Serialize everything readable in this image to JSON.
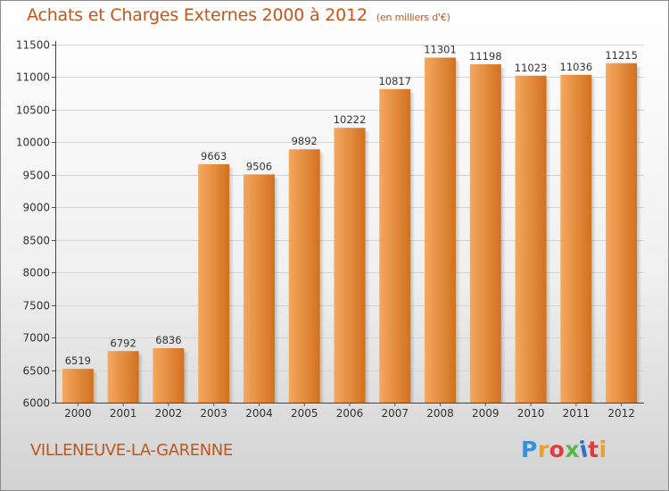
{
  "title": "Achats et Charges Externes 2000 à 2012",
  "unit_note": "(en milliers d'€)",
  "commune": "VILLENEUVE-LA-GARENNE",
  "logo": {
    "text": "Proxiti",
    "colors": [
      "#3a8fd8",
      "#f0a020",
      "#e23b3b",
      "#55b848",
      "#2f6fc9",
      "#e23b3b",
      "#f0a020"
    ]
  },
  "colors": {
    "bar_light": "#f5a860",
    "bar_dark": "#d2711f",
    "text": "#c0571a"
  },
  "chart_data": {
    "type": "bar",
    "categories": [
      "2000",
      "2001",
      "2002",
      "2003",
      "2004",
      "2005",
      "2006",
      "2007",
      "2008",
      "2009",
      "2010",
      "2011",
      "2012"
    ],
    "values": [
      6519,
      6792,
      6836,
      9663,
      9506,
      9892,
      10222,
      10817,
      11301,
      11198,
      11023,
      11036,
      11215
    ],
    "title": "Achats et Charges Externes 2000 à 2012",
    "ylim": [
      6000,
      11500
    ],
    "yticks": [
      6000,
      6500,
      7000,
      7500,
      8000,
      8500,
      9000,
      9500,
      10000,
      10500,
      11000,
      11500
    ],
    "grid": true
  }
}
